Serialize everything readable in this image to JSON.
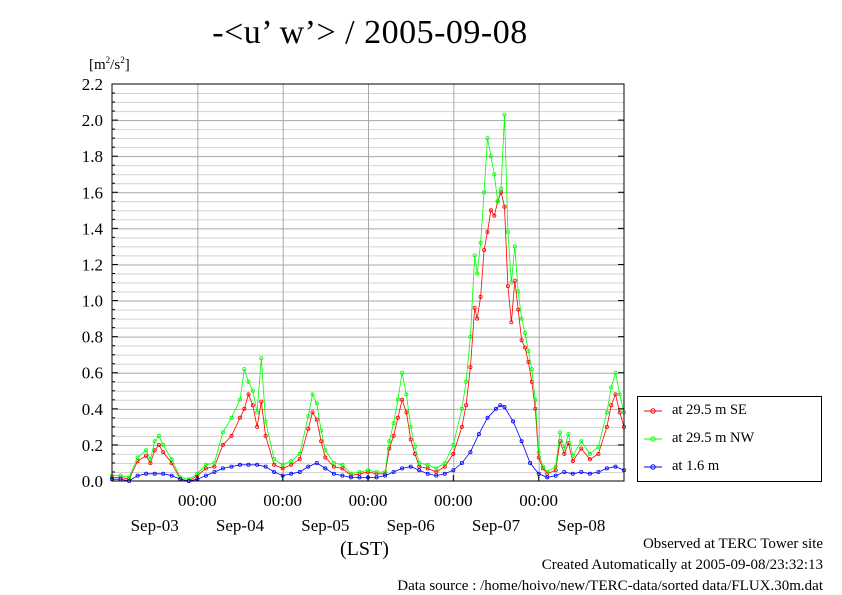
{
  "chart_data": {
    "type": "line",
    "title": "-<u’ w’> / 2005-09-08",
    "ylabel_unit_base": "[m",
    "ylabel_unit_exp1": "2",
    "ylabel_unit_mid": "/s",
    "ylabel_unit_exp2": "2",
    "ylabel_unit_end": "]",
    "xlabel": "(LST)",
    "ylim": [
      0.0,
      2.2
    ],
    "y_ticks": [
      "0.0",
      "0.2",
      "0.4",
      "0.6",
      "0.8",
      "1.0",
      "1.2",
      "1.4",
      "1.6",
      "1.8",
      "2.0",
      "2.2"
    ],
    "x_range_days": [
      -3.0,
      3.0
    ],
    "midnight_ticks": [
      {
        "day": -2,
        "label": "00:00"
      },
      {
        "day": -1,
        "label": "00:00"
      },
      {
        "day": 0,
        "label": "00:00"
      },
      {
        "day": 1,
        "label": "00:00"
      },
      {
        "day": 2,
        "label": "00:00"
      }
    ],
    "date_labels": [
      {
        "day": -2.5,
        "label": "Sep-03"
      },
      {
        "day": -1.5,
        "label": "Sep-04"
      },
      {
        "day": -0.5,
        "label": "Sep-05"
      },
      {
        "day": 0.5,
        "label": "Sep-06"
      },
      {
        "day": 1.5,
        "label": "Sep-07"
      },
      {
        "day": 2.5,
        "label": "Sep-08"
      }
    ],
    "grid": true,
    "legend_position": "right, outside plot, bottom",
    "series": [
      {
        "name": "at 29.5 m SE",
        "color": "#ff0000",
        "points": [
          [
            -3.0,
            0.02
          ],
          [
            -2.9,
            0.02
          ],
          [
            -2.8,
            0.01
          ],
          [
            -2.7,
            0.11
          ],
          [
            -2.6,
            0.14
          ],
          [
            -2.55,
            0.1
          ],
          [
            -2.5,
            0.17
          ],
          [
            -2.45,
            0.2
          ],
          [
            -2.4,
            0.16
          ],
          [
            -2.3,
            0.1
          ],
          [
            -2.2,
            0.01
          ],
          [
            -2.1,
            0.0
          ],
          [
            -2.0,
            0.03
          ],
          [
            -1.9,
            0.07
          ],
          [
            -1.8,
            0.08
          ],
          [
            -1.7,
            0.2
          ],
          [
            -1.6,
            0.25
          ],
          [
            -1.5,
            0.35
          ],
          [
            -1.45,
            0.4
          ],
          [
            -1.4,
            0.48
          ],
          [
            -1.35,
            0.42
          ],
          [
            -1.3,
            0.3
          ],
          [
            -1.25,
            0.44
          ],
          [
            -1.2,
            0.25
          ],
          [
            -1.1,
            0.09
          ],
          [
            -1.0,
            0.07
          ],
          [
            -0.9,
            0.09
          ],
          [
            -0.8,
            0.12
          ],
          [
            -0.7,
            0.29
          ],
          [
            -0.65,
            0.38
          ],
          [
            -0.6,
            0.34
          ],
          [
            -0.55,
            0.22
          ],
          [
            -0.5,
            0.13
          ],
          [
            -0.4,
            0.08
          ],
          [
            -0.3,
            0.07
          ],
          [
            -0.2,
            0.03
          ],
          [
            -0.1,
            0.04
          ],
          [
            0.0,
            0.05
          ],
          [
            0.1,
            0.04
          ],
          [
            0.2,
            0.04
          ],
          [
            0.25,
            0.18
          ],
          [
            0.3,
            0.25
          ],
          [
            0.35,
            0.35
          ],
          [
            0.4,
            0.45
          ],
          [
            0.45,
            0.38
          ],
          [
            0.5,
            0.23
          ],
          [
            0.55,
            0.15
          ],
          [
            0.6,
            0.08
          ],
          [
            0.7,
            0.07
          ],
          [
            0.8,
            0.05
          ],
          [
            0.9,
            0.08
          ],
          [
            1.0,
            0.15
          ],
          [
            1.1,
            0.3
          ],
          [
            1.15,
            0.42
          ],
          [
            1.2,
            0.63
          ],
          [
            1.25,
            0.96
          ],
          [
            1.28,
            0.9
          ],
          [
            1.32,
            1.02
          ],
          [
            1.36,
            1.28
          ],
          [
            1.4,
            1.38
          ],
          [
            1.44,
            1.5
          ],
          [
            1.48,
            1.47
          ],
          [
            1.52,
            1.55
          ],
          [
            1.56,
            1.6
          ],
          [
            1.6,
            1.52
          ],
          [
            1.64,
            1.08
          ],
          [
            1.68,
            0.88
          ],
          [
            1.72,
            1.11
          ],
          [
            1.76,
            0.95
          ],
          [
            1.8,
            0.78
          ],
          [
            1.84,
            0.74
          ],
          [
            1.88,
            0.66
          ],
          [
            1.92,
            0.55
          ],
          [
            1.96,
            0.4
          ],
          [
            2.0,
            0.13
          ],
          [
            2.05,
            0.07
          ],
          [
            2.1,
            0.04
          ],
          [
            2.2,
            0.06
          ],
          [
            2.25,
            0.22
          ],
          [
            2.3,
            0.15
          ],
          [
            2.35,
            0.21
          ],
          [
            2.4,
            0.11
          ],
          [
            2.5,
            0.18
          ],
          [
            2.6,
            0.12
          ],
          [
            2.7,
            0.15
          ],
          [
            2.8,
            0.3
          ],
          [
            2.85,
            0.42
          ],
          [
            2.9,
            0.48
          ],
          [
            2.95,
            0.38
          ],
          [
            3.0,
            0.3
          ]
        ]
      },
      {
        "name": "at 29.5 m NW",
        "color": "#00ff00",
        "points": [
          [
            -3.0,
            0.03
          ],
          [
            -2.9,
            0.03
          ],
          [
            -2.8,
            0.02
          ],
          [
            -2.7,
            0.13
          ],
          [
            -2.6,
            0.17
          ],
          [
            -2.55,
            0.12
          ],
          [
            -2.5,
            0.22
          ],
          [
            -2.45,
            0.25
          ],
          [
            -2.4,
            0.2
          ],
          [
            -2.3,
            0.12
          ],
          [
            -2.2,
            0.02
          ],
          [
            -2.1,
            0.01
          ],
          [
            -2.0,
            0.04
          ],
          [
            -1.9,
            0.09
          ],
          [
            -1.8,
            0.1
          ],
          [
            -1.7,
            0.27
          ],
          [
            -1.6,
            0.35
          ],
          [
            -1.5,
            0.45
          ],
          [
            -1.45,
            0.62
          ],
          [
            -1.4,
            0.55
          ],
          [
            -1.35,
            0.5
          ],
          [
            -1.3,
            0.38
          ],
          [
            -1.25,
            0.68
          ],
          [
            -1.2,
            0.33
          ],
          [
            -1.1,
            0.12
          ],
          [
            -1.0,
            0.09
          ],
          [
            -0.9,
            0.11
          ],
          [
            -0.8,
            0.15
          ],
          [
            -0.7,
            0.36
          ],
          [
            -0.65,
            0.48
          ],
          [
            -0.6,
            0.43
          ],
          [
            -0.55,
            0.28
          ],
          [
            -0.5,
            0.17
          ],
          [
            -0.4,
            0.1
          ],
          [
            -0.3,
            0.09
          ],
          [
            -0.2,
            0.04
          ],
          [
            -0.1,
            0.05
          ],
          [
            0.0,
            0.06
          ],
          [
            0.1,
            0.05
          ],
          [
            0.2,
            0.05
          ],
          [
            0.25,
            0.22
          ],
          [
            0.3,
            0.32
          ],
          [
            0.35,
            0.45
          ],
          [
            0.4,
            0.6
          ],
          [
            0.45,
            0.48
          ],
          [
            0.5,
            0.3
          ],
          [
            0.55,
            0.19
          ],
          [
            0.6,
            0.1
          ],
          [
            0.7,
            0.09
          ],
          [
            0.8,
            0.07
          ],
          [
            0.9,
            0.1
          ],
          [
            1.0,
            0.2
          ],
          [
            1.1,
            0.4
          ],
          [
            1.15,
            0.55
          ],
          [
            1.2,
            0.8
          ],
          [
            1.25,
            1.25
          ],
          [
            1.28,
            1.15
          ],
          [
            1.32,
            1.32
          ],
          [
            1.36,
            1.6
          ],
          [
            1.4,
            1.9
          ],
          [
            1.44,
            1.8
          ],
          [
            1.48,
            1.7
          ],
          [
            1.52,
            1.55
          ],
          [
            1.56,
            1.62
          ],
          [
            1.6,
            2.03
          ],
          [
            1.64,
            1.38
          ],
          [
            1.68,
            1.1
          ],
          [
            1.72,
            1.3
          ],
          [
            1.76,
            1.05
          ],
          [
            1.8,
            0.9
          ],
          [
            1.84,
            0.82
          ],
          [
            1.88,
            0.72
          ],
          [
            1.92,
            0.62
          ],
          [
            1.96,
            0.45
          ],
          [
            2.0,
            0.16
          ],
          [
            2.05,
            0.08
          ],
          [
            2.1,
            0.05
          ],
          [
            2.2,
            0.08
          ],
          [
            2.25,
            0.27
          ],
          [
            2.3,
            0.18
          ],
          [
            2.35,
            0.26
          ],
          [
            2.4,
            0.14
          ],
          [
            2.5,
            0.22
          ],
          [
            2.6,
            0.15
          ],
          [
            2.7,
            0.19
          ],
          [
            2.8,
            0.38
          ],
          [
            2.85,
            0.52
          ],
          [
            2.9,
            0.6
          ],
          [
            2.95,
            0.48
          ],
          [
            3.0,
            0.38
          ]
        ]
      },
      {
        "name": "at 1.6 m",
        "color": "#0000ff",
        "points": [
          [
            -3.0,
            0.01
          ],
          [
            -2.9,
            0.01
          ],
          [
            -2.8,
            0.0
          ],
          [
            -2.7,
            0.03
          ],
          [
            -2.6,
            0.04
          ],
          [
            -2.5,
            0.04
          ],
          [
            -2.4,
            0.04
          ],
          [
            -2.3,
            0.03
          ],
          [
            -2.2,
            0.01
          ],
          [
            -2.1,
            0.0
          ],
          [
            -2.0,
            0.01
          ],
          [
            -1.9,
            0.03
          ],
          [
            -1.8,
            0.05
          ],
          [
            -1.7,
            0.07
          ],
          [
            -1.6,
            0.08
          ],
          [
            -1.5,
            0.09
          ],
          [
            -1.4,
            0.09
          ],
          [
            -1.3,
            0.09
          ],
          [
            -1.2,
            0.08
          ],
          [
            -1.1,
            0.05
          ],
          [
            -1.0,
            0.03
          ],
          [
            -0.9,
            0.04
          ],
          [
            -0.8,
            0.05
          ],
          [
            -0.7,
            0.08
          ],
          [
            -0.6,
            0.1
          ],
          [
            -0.5,
            0.07
          ],
          [
            -0.4,
            0.04
          ],
          [
            -0.3,
            0.03
          ],
          [
            -0.2,
            0.02
          ],
          [
            -0.1,
            0.02
          ],
          [
            0.0,
            0.02
          ],
          [
            0.1,
            0.02
          ],
          [
            0.2,
            0.03
          ],
          [
            0.3,
            0.05
          ],
          [
            0.4,
            0.07
          ],
          [
            0.5,
            0.08
          ],
          [
            0.6,
            0.06
          ],
          [
            0.7,
            0.04
          ],
          [
            0.8,
            0.03
          ],
          [
            0.9,
            0.04
          ],
          [
            1.0,
            0.06
          ],
          [
            1.1,
            0.1
          ],
          [
            1.2,
            0.16
          ],
          [
            1.3,
            0.26
          ],
          [
            1.4,
            0.35
          ],
          [
            1.5,
            0.4
          ],
          [
            1.55,
            0.42
          ],
          [
            1.6,
            0.41
          ],
          [
            1.7,
            0.33
          ],
          [
            1.8,
            0.22
          ],
          [
            1.9,
            0.1
          ],
          [
            2.0,
            0.04
          ],
          [
            2.1,
            0.02
          ],
          [
            2.2,
            0.03
          ],
          [
            2.3,
            0.05
          ],
          [
            2.4,
            0.04
          ],
          [
            2.5,
            0.05
          ],
          [
            2.6,
            0.04
          ],
          [
            2.7,
            0.05
          ],
          [
            2.8,
            0.07
          ],
          [
            2.9,
            0.08
          ],
          [
            3.0,
            0.06
          ]
        ]
      }
    ]
  },
  "footer": {
    "observed": "Observed at TERC Tower site",
    "created": "Created Automatically at 2005-09-08/23:32:13",
    "source": "Data source : /home/hoivo/new/TERC-data/sorted  data/FLUX.30m.dat"
  }
}
